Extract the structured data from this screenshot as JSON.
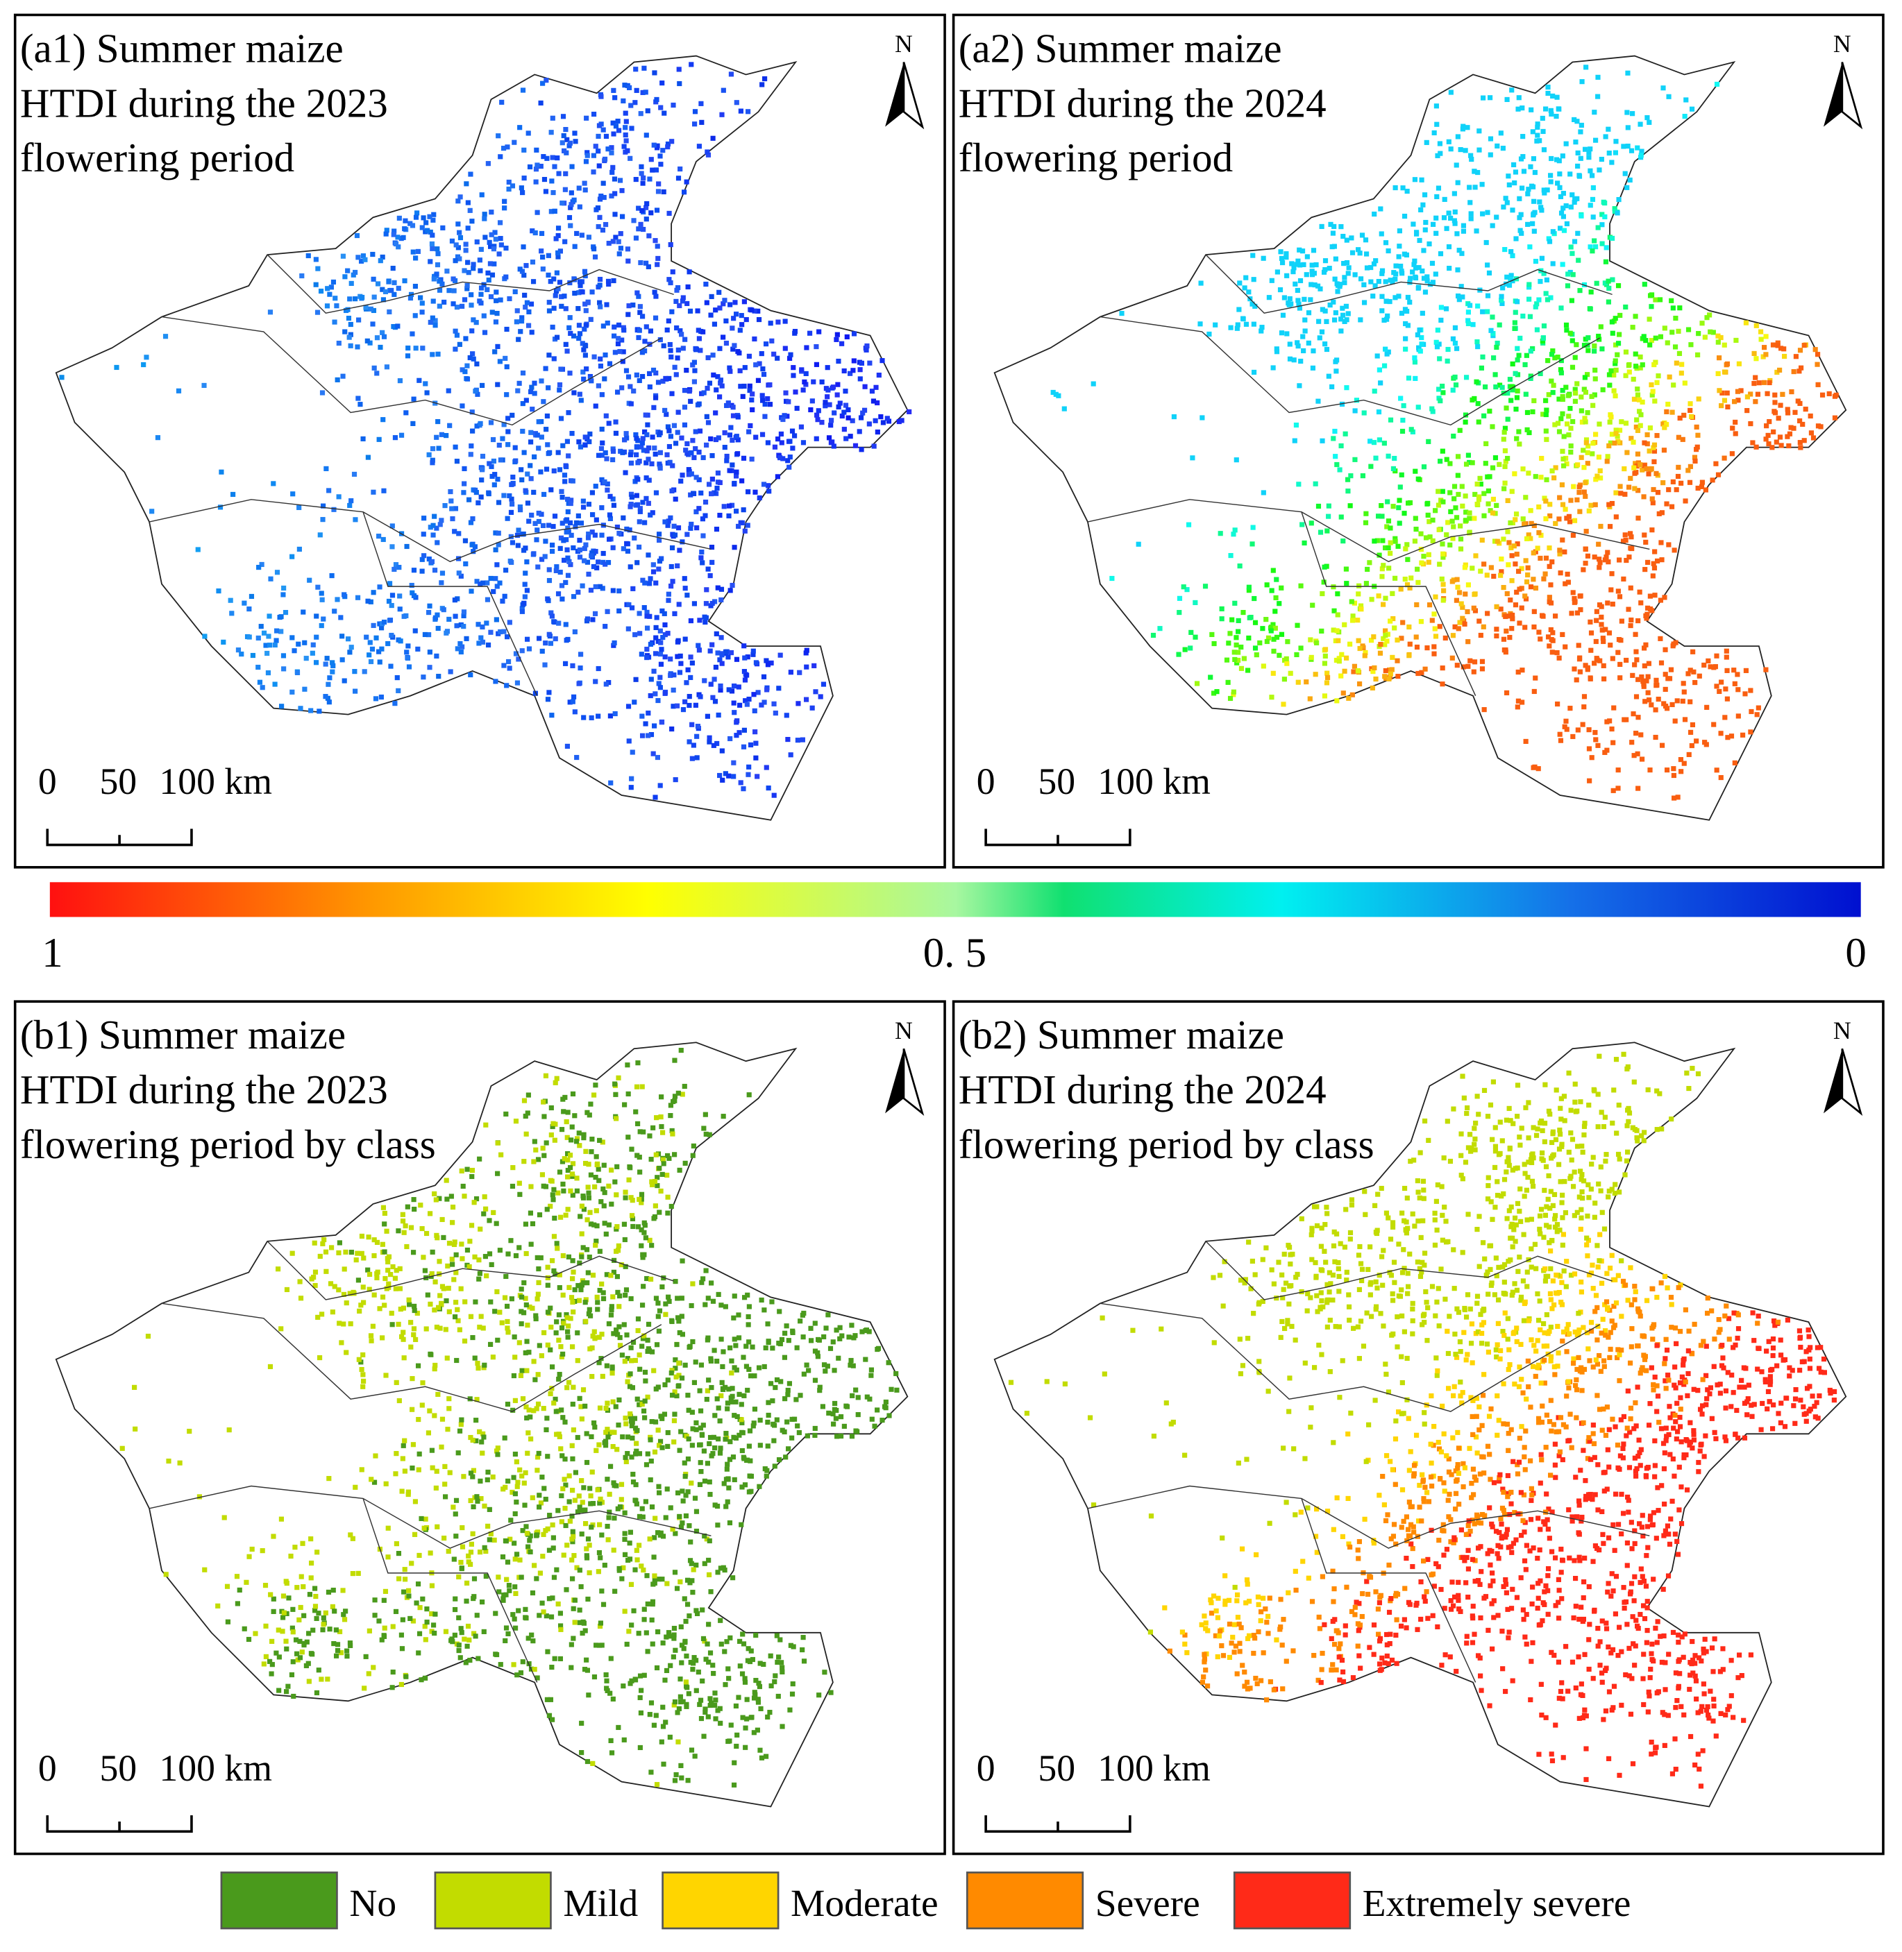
{
  "panels": [
    {
      "title": [
        "(a1) Summer maize",
        "HTDI during the 2023",
        "flowering period"
      ],
      "north": "N",
      "scale_labels": [
        "0",
        "50",
        "100 km"
      ]
    },
    {
      "title": [
        "(a2) Summer maize",
        "HTDI during the 2024",
        "flowering period"
      ],
      "north": "N",
      "scale_labels": [
        "0",
        "50",
        "100 km"
      ]
    },
    {
      "title": [
        "(b1) Summer maize",
        "HTDI during the 2023",
        "flowering period by class"
      ],
      "north": "N",
      "scale_labels": [
        "0",
        "50",
        "100 km"
      ]
    },
    {
      "title": [
        "(b2) Summer maize",
        "HTDI during the 2024",
        "flowering period by class"
      ],
      "north": "N",
      "scale_labels": [
        "0",
        "50",
        "100 km"
      ]
    }
  ],
  "colorbar": {
    "labels": [
      "1",
      "0. 5",
      "0"
    ]
  },
  "legend": [
    {
      "label": "No",
      "color": "#4a9a1c"
    },
    {
      "label": "Mild",
      "color": "#c2dc00"
    },
    {
      "label": "Moderate",
      "color": "#ffd500"
    },
    {
      "label": "Severe",
      "color": "#ff8a00"
    },
    {
      "label": "Extremely severe",
      "color": "#ff2a18"
    }
  ]
}
